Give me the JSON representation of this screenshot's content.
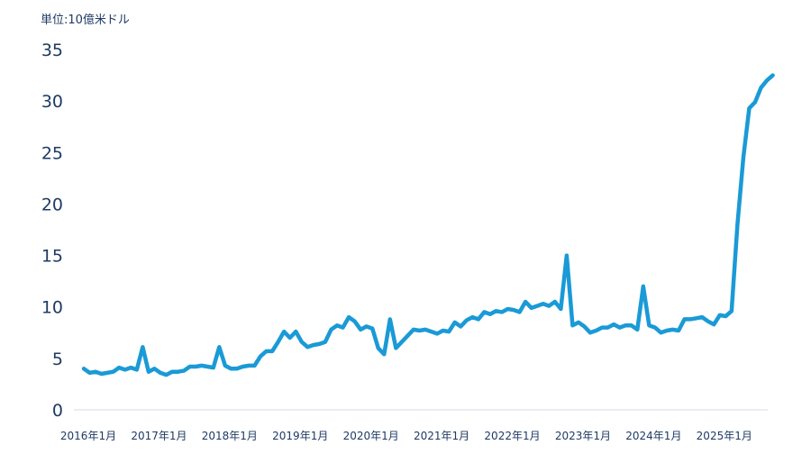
{
  "chart_data": {
    "type": "line",
    "unit_label": "単位:10億米ドル",
    "ylim": [
      0,
      35
    ],
    "y_ticks": [
      "0",
      "5",
      "10",
      "15",
      "20",
      "25",
      "30",
      "35"
    ],
    "x_tick_labels": [
      "2016年1月",
      "2017年1月",
      "2018年1月",
      "2019年1月",
      "2020年1月",
      "2021年1月",
      "2022年1月",
      "2023年1月",
      "2024年1月",
      "2025年1月"
    ],
    "grid": false,
    "legend": "none",
    "series": [
      {
        "color": "#1a9ad6",
        "values": [
          4.0,
          3.6,
          3.7,
          3.5,
          3.6,
          3.7,
          4.1,
          3.9,
          4.1,
          3.9,
          6.1,
          3.7,
          4.0,
          3.6,
          3.4,
          3.7,
          3.7,
          3.8,
          4.2,
          4.2,
          4.3,
          4.2,
          4.1,
          6.1,
          4.3,
          4.0,
          4.0,
          4.2,
          4.3,
          4.3,
          5.2,
          5.7,
          5.7,
          6.6,
          7.6,
          7.0,
          7.6,
          6.6,
          6.1,
          6.3,
          6.4,
          6.6,
          7.8,
          8.2,
          8.0,
          9.0,
          8.6,
          7.8,
          8.1,
          7.9,
          6.0,
          5.4,
          8.8,
          6.0,
          6.6,
          7.2,
          7.8,
          7.7,
          7.8,
          7.6,
          7.4,
          7.7,
          7.6,
          8.5,
          8.1,
          8.7,
          9.0,
          8.8,
          9.5,
          9.3,
          9.6,
          9.5,
          9.8,
          9.7,
          9.5,
          10.5,
          9.9,
          10.1,
          10.3,
          10.1,
          10.5,
          9.8,
          15.0,
          8.2,
          8.5,
          8.1,
          7.5,
          7.7,
          8.0,
          8.0,
          8.3,
          8.0,
          8.2,
          8.2,
          7.8,
          12.0,
          8.2,
          8.0,
          7.5,
          7.7,
          7.8,
          7.7,
          8.8,
          8.8,
          8.9,
          9.0,
          8.6,
          8.3,
          9.2,
          9.1,
          9.6,
          18.0,
          24.5,
          29.3,
          29.9,
          31.3,
          32.0,
          32.5
        ]
      }
    ]
  }
}
